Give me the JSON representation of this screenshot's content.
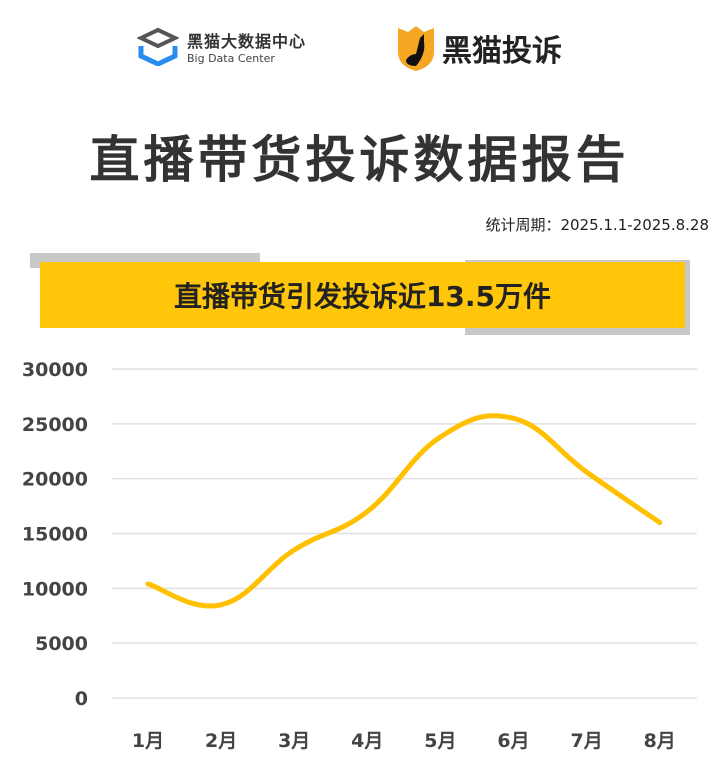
{
  "header": {
    "logo_left_cn": "黑猫大数据中心",
    "logo_left_en": "Big Data Center",
    "logo_right": "黑猫投诉"
  },
  "title": "直播带货投诉数据报告",
  "period": "统计周期：2025.1.1-2025.8.28",
  "banner": "直播带货引发投诉近13.5万件",
  "colors": {
    "accent": "#ffc60a",
    "line": "#ffc000",
    "grid": "#e0e0e0"
  },
  "chart_data": {
    "type": "line",
    "smooth": true,
    "categories": [
      "1月",
      "2月",
      "3月",
      "4月",
      "5月",
      "6月",
      "7月",
      "8月"
    ],
    "series": [
      {
        "values": [
          10400,
          8500,
          13500,
          17000,
          23800,
          25500,
          20600,
          16000
        ]
      }
    ],
    "yticks": [
      "0",
      "5000",
      "10000",
      "15000",
      "20000",
      "25000",
      "30000"
    ],
    "ylim": [
      0,
      30000
    ],
    "grid": true,
    "legend": "none"
  }
}
